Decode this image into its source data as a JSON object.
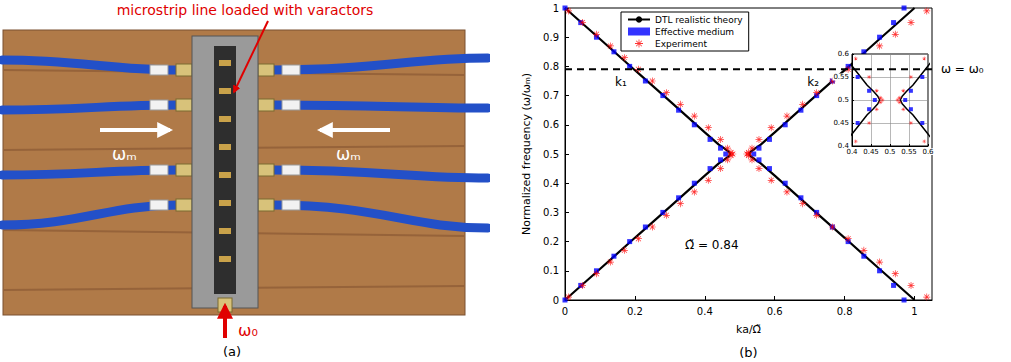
{
  "panel_a": {
    "label": "(a)",
    "annotation": "microstrip line loaded with varactors",
    "pump_left": "ωₘ",
    "pump_right": "ωₘ",
    "signal": "ω₀"
  },
  "chart_data": {
    "type": "line",
    "label": "(b)",
    "xlabel": "ka/Ω̃",
    "ylabel": "Normalized frequency (ω/ωₘ)",
    "xlim": [
      0,
      1.05
    ],
    "ylim": [
      0,
      1
    ],
    "xticks": [
      0,
      0.2,
      0.4,
      0.6,
      0.8,
      1
    ],
    "yticks": [
      0,
      0.1,
      0.2,
      0.3,
      0.4,
      0.5,
      0.6,
      0.7,
      0.8,
      0.9,
      1
    ],
    "grid": false,
    "legend": "upper left",
    "series": [
      {
        "name": "DTL realistic theory",
        "type": "line",
        "color": "#000000",
        "line_style": "solid",
        "x": [
          0,
          0.1,
          0.2,
          0.3,
          0.4,
          0.44,
          0.455,
          0.468,
          0.473,
          0.468,
          0.455,
          0.44,
          0.4,
          0.3,
          0.2,
          0.1,
          0,
          null,
          1,
          0.9,
          0.8,
          0.7,
          0.6,
          0.56,
          0.545,
          0.532,
          0.527,
          0.532,
          0.545,
          0.56,
          0.6,
          0.7,
          0.8,
          0.9,
          1
        ],
        "values": [
          1,
          0.894,
          0.787,
          0.681,
          0.574,
          0.532,
          0.52,
          0.508,
          0.5,
          0.492,
          0.48,
          0.468,
          0.426,
          0.319,
          0.213,
          0.106,
          0,
          null,
          1,
          0.894,
          0.787,
          0.681,
          0.574,
          0.532,
          0.52,
          0.508,
          0.5,
          0.492,
          0.48,
          0.468,
          0.426,
          0.319,
          0.213,
          0.106,
          0
        ]
      },
      {
        "name": "Effective medium",
        "type": "scatter",
        "color": "#0000ff",
        "marker": "square",
        "x": [
          0,
          0.045,
          0.09,
          0.14,
          0.185,
          0.23,
          0.28,
          0.325,
          0.37,
          0.415,
          0.445,
          0.46,
          0.445,
          0.415,
          0.37,
          0.325,
          0.28,
          0.23,
          0.185,
          0.14,
          0.09,
          0.045,
          0,
          0.54,
          0.555,
          0.585,
          0.63,
          0.675,
          0.72,
          0.765,
          0.81,
          0.855,
          0.9,
          0.94,
          0.97,
          0.555,
          0.585,
          0.63,
          0.675,
          0.72,
          0.765,
          0.81,
          0.855,
          0.9,
          0.94,
          0.97
        ],
        "values": [
          1,
          0.95,
          0.9,
          0.85,
          0.8,
          0.75,
          0.7,
          0.65,
          0.6,
          0.55,
          0.52,
          0.5,
          0.48,
          0.45,
          0.4,
          0.35,
          0.3,
          0.25,
          0.2,
          0.15,
          0.1,
          0.05,
          0,
          0.5,
          0.52,
          0.55,
          0.6,
          0.65,
          0.7,
          0.75,
          0.8,
          0.85,
          0.9,
          0.95,
          1,
          0.48,
          0.45,
          0.4,
          0.35,
          0.3,
          0.25,
          0.2,
          0.15,
          0.1,
          0.05,
          0
        ]
      },
      {
        "name": "Experiment",
        "type": "scatter",
        "color": "#ff0000",
        "marker": "asterisk",
        "x": [
          0.01,
          0.05,
          0.09,
          0.13,
          0.17,
          0.21,
          0.25,
          0.29,
          0.33,
          0.37,
          0.41,
          0.445,
          0.465,
          0.475,
          0.48,
          0.475,
          0.465,
          0.445,
          0.41,
          0.37,
          0.33,
          0.29,
          0.25,
          0.21,
          0.17,
          0.13,
          0.09,
          0.05,
          0.01,
          0.52,
          0.525,
          0.535,
          0.555,
          0.59,
          0.635,
          0.68,
          0.72,
          0.765,
          0.81,
          0.855,
          0.9,
          0.945,
          0.99,
          1.035,
          0.525,
          0.535,
          0.555,
          0.59,
          0.635,
          0.68,
          0.72,
          0.765,
          0.81,
          0.855,
          0.9,
          0.945,
          0.99,
          1.035
        ],
        "values": [
          0.99,
          0.95,
          0.91,
          0.87,
          0.83,
          0.79,
          0.75,
          0.71,
          0.67,
          0.63,
          0.59,
          0.55,
          0.52,
          0.505,
          0.5,
          0.495,
          0.48,
          0.45,
          0.41,
          0.37,
          0.33,
          0.29,
          0.25,
          0.21,
          0.17,
          0.13,
          0.09,
          0.05,
          0.01,
          0.5,
          0.505,
          0.52,
          0.55,
          0.59,
          0.63,
          0.67,
          0.71,
          0.75,
          0.79,
          0.83,
          0.87,
          0.91,
          0.95,
          0.99,
          0.495,
          0.48,
          0.45,
          0.41,
          0.37,
          0.33,
          0.29,
          0.25,
          0.21,
          0.17,
          0.13,
          0.09,
          0.05,
          0.01
        ]
      }
    ],
    "annotations": [
      {
        "text": "k₁",
        "x": 0.16,
        "y": 0.745
      },
      {
        "text": "k₂",
        "x": 0.71,
        "y": 0.745
      },
      {
        "text": "Ω̃ = 0.84",
        "x": 0.42,
        "y": 0.19
      }
    ],
    "hline": {
      "y": 0.79,
      "label": "ω = ω₀",
      "line_style": "dashed"
    },
    "inset": {
      "xlim": [
        0.4,
        0.6
      ],
      "ylim": [
        0.4,
        0.6
      ],
      "xticks": [
        0.4,
        0.45,
        0.5,
        0.55,
        0.6
      ],
      "yticks": [
        0.4,
        0.45,
        0.5,
        0.55,
        0.6
      ],
      "grid": true
    }
  }
}
